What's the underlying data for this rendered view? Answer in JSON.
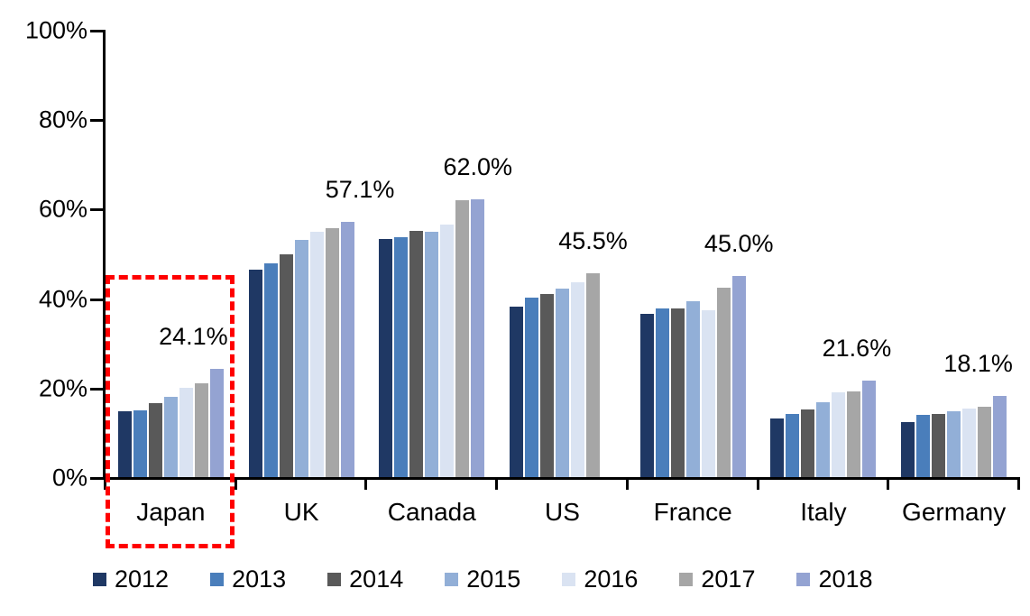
{
  "chart_data": {
    "type": "bar",
    "title": "",
    "categories": [
      "Japan",
      "UK",
      "Canada",
      "US",
      "France",
      "Italy",
      "Germany"
    ],
    "series": [
      {
        "name": "2012",
        "color": "#1F3864",
        "values": [
          14.8,
          46.4,
          53.2,
          38.2,
          36.5,
          13.1,
          12.4
        ]
      },
      {
        "name": "2013",
        "color": "#4A7EBB",
        "values": [
          15.0,
          47.7,
          53.6,
          40.1,
          37.8,
          14.1,
          13.9
        ]
      },
      {
        "name": "2014",
        "color": "#595959",
        "values": [
          16.6,
          49.9,
          55.1,
          41.0,
          37.7,
          15.2,
          14.2
        ]
      },
      {
        "name": "2015",
        "color": "#92AFD7",
        "values": [
          17.9,
          53.0,
          54.9,
          42.1,
          39.3,
          16.8,
          14.7
        ]
      },
      {
        "name": "2016",
        "color": "#DAE3F2",
        "values": [
          19.9,
          54.8,
          56.4,
          43.5,
          37.4,
          18.9,
          15.3
        ]
      },
      {
        "name": "2017",
        "color": "#A6A6A6",
        "values": [
          21.0,
          55.6,
          61.8,
          45.5,
          42.4,
          19.2,
          15.8
        ]
      },
      {
        "name": "2018",
        "color": "#94A3D2",
        "values": [
          24.1,
          57.1,
          62.0,
          null,
          45.0,
          21.6,
          18.1
        ]
      }
    ],
    "ylim": [
      0,
      100
    ],
    "y_tick_step": 20,
    "y_tick_labels": [
      "0%",
      "20%",
      "40%",
      "60%",
      "80%",
      "100%"
    ],
    "x_axis_labels": [
      "Japan",
      "UK",
      "Canada",
      "US",
      "France",
      "Italy",
      "Germany"
    ],
    "grid": false,
    "legend_position": "bottom",
    "legend_labels": [
      "2012",
      "2013",
      "2014",
      "2015",
      "2016",
      "2017",
      "2018"
    ],
    "annotations": [
      {
        "category": "Japan",
        "series": "2018",
        "text": "24.1%"
      },
      {
        "category": "UK",
        "series": "2018",
        "text": "57.1%"
      },
      {
        "category": "Canada",
        "series": "2018",
        "text": "62.0%"
      },
      {
        "category": "US",
        "series": "2017",
        "text": "45.5%"
      },
      {
        "category": "France",
        "series": "2018",
        "text": "45.0%"
      },
      {
        "category": "Italy",
        "series": "2018",
        "text": "21.6%"
      },
      {
        "category": "Germany",
        "series": "2018",
        "text": "18.1%"
      }
    ],
    "highlight_box": {
      "shape": "dashed-rectangle",
      "category": "Japan",
      "color": "#FF0000"
    }
  }
}
